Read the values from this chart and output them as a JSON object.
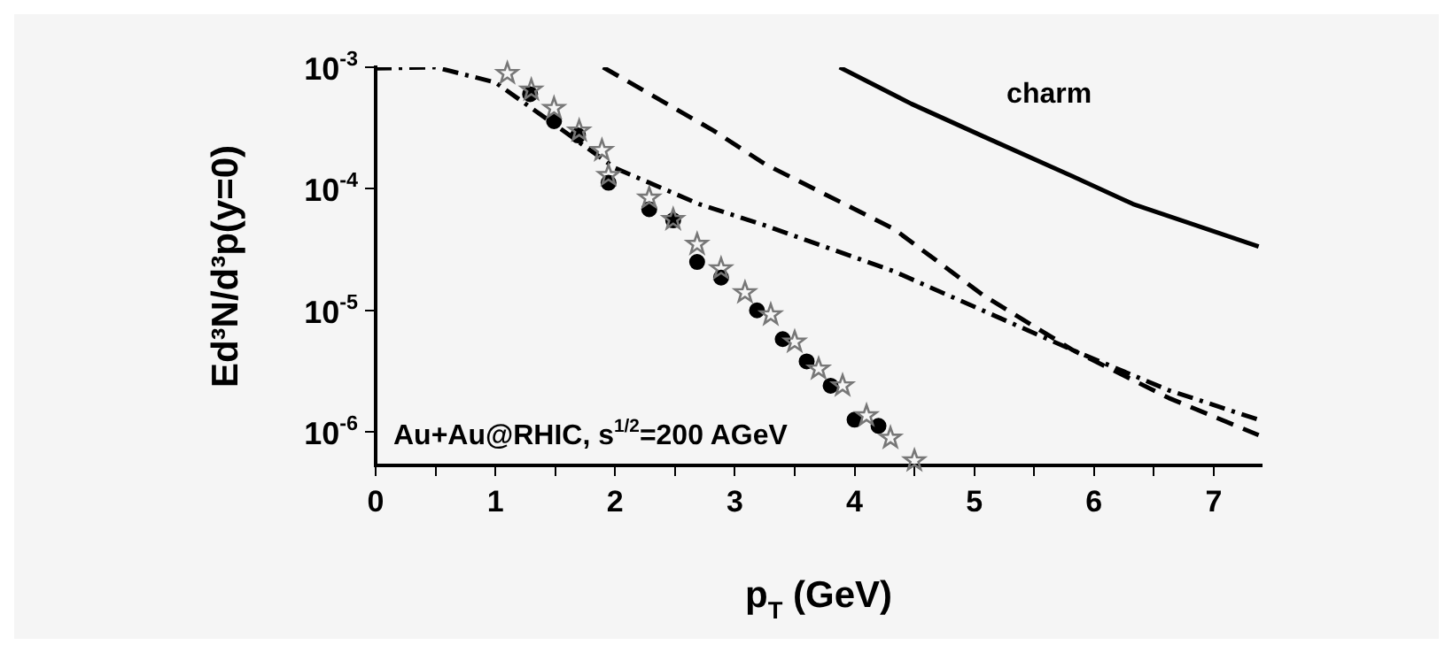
{
  "chart_data": {
    "type": "line",
    "xlabel": "p$_{T}$ (GeV)",
    "ylabel": "Ed³N/d³p(y=0)",
    "log": "y",
    "xlim": [
      0,
      7.4
    ],
    "ylim": [
      5.3e-07,
      0.001
    ],
    "xticks": [
      0,
      {
        "value": 0.5,
        "label": null
      },
      1,
      {
        "value": 1.5,
        "label": null
      },
      2,
      {
        "value": 2.5,
        "label": null
      },
      3,
      {
        "value": 3.5,
        "label": null
      },
      4,
      {
        "value": 4.5,
        "label": null
      },
      5,
      {
        "value": 5.5,
        "label": null
      },
      6,
      {
        "value": 6.5,
        "label": null
      },
      7
    ],
    "yticks": [
      {
        "value": 1e-06,
        "label": "10$^{-6}$"
      },
      {
        "value": 1e-05,
        "label": "10$^{-5}$"
      },
      {
        "value": 0.0001,
        "label": "10$^{-4}$"
      },
      {
        "value": 0.001,
        "label": "10$^{-3}$"
      }
    ],
    "grid": false,
    "legend": false,
    "annotations": [
      "Au+Au@RHIC, s$^{1/2}$=200 AGeV"
    ],
    "series": [
      {
        "name": "charm",
        "color": "#000000",
        "line_style": "solid",
        "marker": "none",
        "x": [
          3.875,
          4.475,
          5.075,
          5.825,
          6.325,
          7.375
        ],
        "values": [
          0.001,
          0.0005,
          0.00027,
          0.000126,
          7.5e-05,
          3.35e-05
        ]
      },
      {
        "color": "#000000",
        "line_style": "dashed",
        "marker": "none",
        "x": [
          1.9,
          2.825,
          3.25,
          4.325,
          5.075,
          5.825,
          6.625,
          7.375
        ],
        "values": [
          0.001,
          0.0003,
          0.00016,
          4.7e-05,
          1.33e-05,
          4.7e-06,
          1.9e-06,
          9.4e-07
        ]
      },
      {
        "color": "#000000",
        "line_style": "dashdot",
        "marker": "none",
        "x": [
          0,
          0.5,
          1,
          1.5,
          2,
          2.7,
          3.25,
          4.325,
          5.825,
          6.625,
          7.375
        ],
        "values": [
          0.00098,
          0.001,
          0.00075,
          0.000335,
          0.000148,
          7.5e-05,
          5e-05,
          2.1e-05,
          4.7e-06,
          2.2e-06,
          1.26e-06
        ]
      },
      {
        "type": "scatter",
        "color": "#000000",
        "marker": "circle",
        "x": [
          1.29,
          1.49,
          1.69,
          1.945,
          2.285,
          2.485,
          2.685,
          2.885,
          3.185,
          3.4,
          3.6,
          3.8,
          4.0,
          4.2
        ],
        "values": [
          0.0006,
          0.00036,
          0.000275,
          0.000112,
          6.8e-05,
          5.5e-05,
          2.5e-05,
          1.86e-05,
          1e-05,
          5.8e-06,
          3.8e-06,
          2.4e-06,
          1.26e-06,
          1.12e-06
        ]
      },
      {
        "type": "scatter",
        "color": "#777777",
        "marker": "star",
        "x": [
          1.1,
          1.3,
          1.49,
          1.7,
          1.89,
          1.945,
          2.285,
          2.485,
          2.685,
          2.885,
          3.085,
          3.3,
          3.5,
          3.7,
          3.9,
          4.1,
          4.3,
          4.5
        ],
        "values": [
          0.00089,
          0.00065,
          0.00046,
          0.0003,
          0.000207,
          0.000129,
          8.4e-05,
          5.6e-05,
          3.5e-05,
          2.2e-05,
          1.4e-05,
          9.2e-06,
          5.5e-06,
          3.3e-06,
          2.4e-06,
          1.36e-06,
          8.9e-07,
          5.8e-07
        ]
      }
    ]
  }
}
